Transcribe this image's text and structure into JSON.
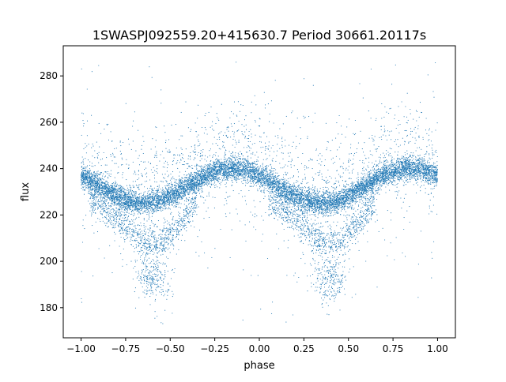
{
  "chart_data": {
    "type": "scatter",
    "title": "1SWASPJ092559.20+415630.7 Period 30661.20117s",
    "xlabel": "phase",
    "ylabel": "flux",
    "xlim": [
      -1.1,
      1.1
    ],
    "ylim": [
      167,
      293
    ],
    "x_ticks": [
      -1.0,
      -0.75,
      -0.5,
      -0.25,
      0.0,
      0.25,
      0.5,
      0.75,
      1.0
    ],
    "x_tick_labels": [
      "−1.00",
      "−0.75",
      "−0.50",
      "−0.25",
      "0.00",
      "0.25",
      "0.50",
      "0.75",
      "1.00"
    ],
    "y_ticks": [
      180,
      200,
      220,
      240,
      260,
      280
    ],
    "y_tick_labels": [
      "180",
      "200",
      "220",
      "240",
      "260",
      "280"
    ],
    "grid": false,
    "legend": "none",
    "marker_color": "#1f77b4",
    "series": [
      {
        "phase_range": [
          -1.0,
          1.0
        ],
        "main_band": {
          "max_flux": 240,
          "max_phase": [
            -0.15,
            0.85
          ],
          "min_flux": 225,
          "min_phase": [
            -0.62,
            0.38
          ],
          "spread": 2.5
        },
        "low_branch": {
          "description_values": [
            {
              "phase": -0.95,
              "flux": 228
            },
            {
              "phase": -0.8,
              "flux": 218
            },
            {
              "phase": -0.65,
              "flux": 209
            },
            {
              "phase": -0.55,
              "flux": 208
            },
            {
              "phase": -0.45,
              "flux": 216
            },
            {
              "phase": -0.35,
              "flux": 226
            }
          ],
          "dip_min_flux": 187,
          "dip_phase": [
            -0.6,
            0.4
          ]
        },
        "outlier_range": [
          173,
          290
        ]
      }
    ]
  }
}
